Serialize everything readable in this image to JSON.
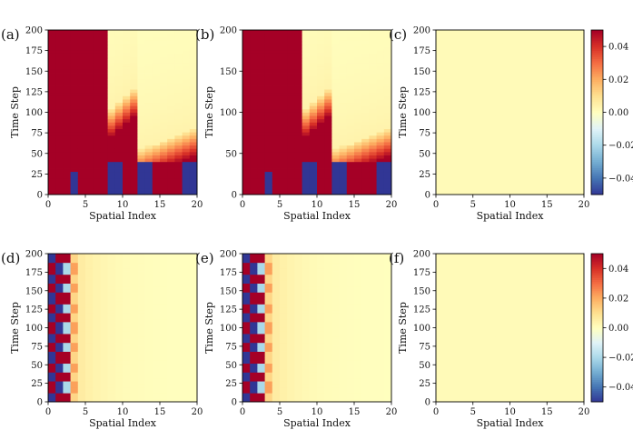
{
  "figure": {
    "colormap": "RdYlBu_r",
    "colormap_stops": [
      "#313695",
      "#4575b4",
      "#74add1",
      "#abd9e9",
      "#e0f3f8",
      "#ffffbf",
      "#fee090",
      "#fdae61",
      "#f46d43",
      "#d73027",
      "#a50026"
    ],
    "colorbar": {
      "range": [
        -0.05,
        0.05
      ],
      "ticks": [
        {
          "value": 0.04,
          "label": "0.04"
        },
        {
          "value": 0.02,
          "label": "0.02"
        },
        {
          "value": 0.0,
          "label": "0.00"
        },
        {
          "value": -0.02,
          "label": "−0.02"
        },
        {
          "value": -0.04,
          "label": "−0.04"
        }
      ]
    }
  },
  "chart_data": [
    {
      "id": "a",
      "panel_label": "(a)",
      "type": "heatmap",
      "pattern": "wavefront",
      "xlabel": "Spatial Index",
      "ylabel": "Time Step",
      "xlim": [
        0,
        20
      ],
      "ylim": [
        0,
        200
      ],
      "xticks": [
        "0",
        "5",
        "10",
        "15",
        "20"
      ],
      "yticks": [
        "0",
        "25",
        "50",
        "75",
        "100",
        "125",
        "150",
        "175",
        "200"
      ]
    },
    {
      "id": "b",
      "panel_label": "(b)",
      "type": "heatmap",
      "pattern": "wavefront",
      "xlabel": "Spatial Index",
      "ylabel": "Time Step",
      "xlim": [
        0,
        20
      ],
      "ylim": [
        0,
        200
      ],
      "xticks": [
        "0",
        "5",
        "10",
        "15",
        "20"
      ],
      "yticks": [
        "0",
        "50",
        "100",
        "150",
        "200"
      ]
    },
    {
      "id": "c",
      "panel_label": "(c)",
      "type": "heatmap",
      "pattern": "zero",
      "xlabel": "Spatial Index",
      "ylabel": "Time Step",
      "xlim": [
        0,
        20
      ],
      "ylim": [
        0,
        200
      ],
      "xticks": [
        "0",
        "5",
        "10",
        "15",
        "20"
      ],
      "yticks": [
        "0",
        "25",
        "50",
        "75",
        "100",
        "125",
        "150",
        "175",
        "200"
      ]
    },
    {
      "id": "d",
      "panel_label": "(d)",
      "type": "heatmap",
      "pattern": "boundary-oscillation",
      "xlabel": "Spatial Index",
      "ylabel": "Time Step",
      "xlim": [
        0,
        20
      ],
      "ylim": [
        0,
        200
      ],
      "xticks": [
        "0",
        "5",
        "10",
        "15",
        "20"
      ],
      "yticks": [
        "0",
        "25",
        "50",
        "75",
        "100",
        "125",
        "150",
        "175",
        "200"
      ]
    },
    {
      "id": "e",
      "panel_label": "(e)",
      "type": "heatmap",
      "pattern": "boundary-oscillation",
      "xlabel": "Spatial Index",
      "ylabel": "Time Step",
      "xlim": [
        0,
        20
      ],
      "ylim": [
        0,
        200
      ],
      "xticks": [
        "0",
        "5",
        "10",
        "15",
        "20"
      ],
      "yticks": [
        "0",
        "25",
        "50",
        "75",
        "100",
        "125",
        "150",
        "175",
        "200"
      ]
    },
    {
      "id": "f",
      "panel_label": "(f)",
      "type": "heatmap",
      "pattern": "zero",
      "xlabel": "Spatial Index",
      "ylabel": "Time Step",
      "xlim": [
        0,
        20
      ],
      "ylim": [
        0,
        200
      ],
      "xticks": [
        "0",
        "5",
        "10",
        "15",
        "20"
      ],
      "yticks": [
        "0",
        "25",
        "50",
        "75",
        "100",
        "125",
        "150",
        "175",
        "200"
      ]
    }
  ]
}
